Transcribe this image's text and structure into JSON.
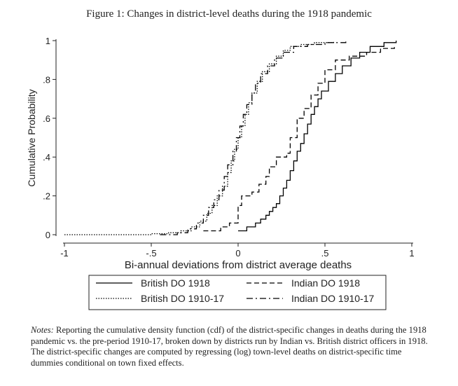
{
  "figure": {
    "title": "Figure 1: Changes in district-level deaths during the 1918 pandemic",
    "notes_label": "Notes:",
    "notes_text": "Reporting the cumulative density function (cdf) of the district-specific changes in deaths during the 1918 pandemic vs. the pre-period 1910-17, broken down by districts run by Indian vs. British district officers in 1918. The district-specific changes are computed by regressing (log) town-level deaths on district-specific time dummies conditional on town fixed effects."
  },
  "chart_data": {
    "type": "line",
    "step": true,
    "title": "",
    "xlabel": "Bi-annual deviations from district average deaths",
    "ylabel": "Cumulative Probability",
    "xlim": [
      -1,
      1
    ],
    "ylim": [
      0,
      1
    ],
    "x_ticks": [
      -1,
      -0.5,
      0,
      0.5,
      1
    ],
    "x_tick_labels": [
      "-1",
      "-.5",
      "0",
      ".5",
      "1"
    ],
    "y_ticks": [
      0,
      0.2,
      0.4,
      0.6,
      0.8,
      1
    ],
    "y_tick_labels": [
      "0",
      ".2",
      ".4",
      ".6",
      ".8",
      "1"
    ],
    "grid": false,
    "legend_position": "bottom",
    "series": [
      {
        "name": "British DO 1918",
        "line_style": "solid",
        "color": "#000000",
        "points": [
          [
            0.0,
            0.02
          ],
          [
            0.05,
            0.04
          ],
          [
            0.1,
            0.06
          ],
          [
            0.13,
            0.08
          ],
          [
            0.16,
            0.1
          ],
          [
            0.18,
            0.12
          ],
          [
            0.2,
            0.14
          ],
          [
            0.22,
            0.16
          ],
          [
            0.24,
            0.2
          ],
          [
            0.26,
            0.24
          ],
          [
            0.28,
            0.28
          ],
          [
            0.3,
            0.33
          ],
          [
            0.32,
            0.38
          ],
          [
            0.34,
            0.43
          ],
          [
            0.36,
            0.47
          ],
          [
            0.38,
            0.52
          ],
          [
            0.4,
            0.57
          ],
          [
            0.42,
            0.62
          ],
          [
            0.44,
            0.66
          ],
          [
            0.46,
            0.7
          ],
          [
            0.48,
            0.74
          ],
          [
            0.52,
            0.79
          ],
          [
            0.56,
            0.83
          ],
          [
            0.6,
            0.87
          ],
          [
            0.65,
            0.91
          ],
          [
            0.7,
            0.94
          ],
          [
            0.76,
            0.97
          ],
          [
            0.84,
            0.99
          ],
          [
            0.91,
            1.0
          ]
        ]
      },
      {
        "name": "Indian DO 1918",
        "line_style": "dashed",
        "color": "#000000",
        "points": [
          [
            -0.2,
            0.02
          ],
          [
            -0.1,
            0.04
          ],
          [
            -0.05,
            0.06
          ],
          [
            0.0,
            0.08
          ],
          [
            0.0,
            0.15
          ],
          [
            0.02,
            0.2
          ],
          [
            0.08,
            0.22
          ],
          [
            0.12,
            0.26
          ],
          [
            0.16,
            0.3
          ],
          [
            0.18,
            0.35
          ],
          [
            0.22,
            0.4
          ],
          [
            0.28,
            0.42
          ],
          [
            0.3,
            0.5
          ],
          [
            0.34,
            0.6
          ],
          [
            0.38,
            0.65
          ],
          [
            0.42,
            0.72
          ],
          [
            0.46,
            0.78
          ],
          [
            0.5,
            0.85
          ],
          [
            0.56,
            0.9
          ],
          [
            0.64,
            0.92
          ],
          [
            0.74,
            0.94
          ],
          [
            0.82,
            0.96
          ],
          [
            0.9,
            0.97
          ]
        ]
      },
      {
        "name": "British DO 1910-17",
        "line_style": "dotted",
        "color": "#000000",
        "points": [
          [
            -1.0,
            0.0
          ],
          [
            -0.5,
            0.005
          ],
          [
            -0.4,
            0.01
          ],
          [
            -0.33,
            0.02
          ],
          [
            -0.27,
            0.04
          ],
          [
            -0.22,
            0.07
          ],
          [
            -0.18,
            0.11
          ],
          [
            -0.15,
            0.15
          ],
          [
            -0.12,
            0.2
          ],
          [
            -0.09,
            0.25
          ],
          [
            -0.06,
            0.32
          ],
          [
            -0.04,
            0.38
          ],
          [
            -0.02,
            0.44
          ],
          [
            0.0,
            0.5
          ],
          [
            0.02,
            0.56
          ],
          [
            0.04,
            0.62
          ],
          [
            0.06,
            0.68
          ],
          [
            0.08,
            0.73
          ],
          [
            0.11,
            0.79
          ],
          [
            0.14,
            0.84
          ],
          [
            0.18,
            0.88
          ],
          [
            0.22,
            0.92
          ],
          [
            0.26,
            0.95
          ],
          [
            0.3,
            0.97
          ],
          [
            0.36,
            0.98
          ],
          [
            0.44,
            0.99
          ],
          [
            0.55,
            1.0
          ]
        ]
      },
      {
        "name": "Indian DO 1910-17",
        "line_style": "dash-dot",
        "color": "#000000",
        "points": [
          [
            -0.45,
            0.0
          ],
          [
            -0.35,
            0.01
          ],
          [
            -0.29,
            0.03
          ],
          [
            -0.24,
            0.06
          ],
          [
            -0.2,
            0.1
          ],
          [
            -0.17,
            0.14
          ],
          [
            -0.14,
            0.18
          ],
          [
            -0.11,
            0.23
          ],
          [
            -0.08,
            0.3
          ],
          [
            -0.06,
            0.36
          ],
          [
            -0.03,
            0.43
          ],
          [
            -0.01,
            0.5
          ],
          [
            0.01,
            0.56
          ],
          [
            0.03,
            0.62
          ],
          [
            0.05,
            0.67
          ],
          [
            0.08,
            0.73
          ],
          [
            0.1,
            0.78
          ],
          [
            0.13,
            0.83
          ],
          [
            0.17,
            0.87
          ],
          [
            0.21,
            0.91
          ],
          [
            0.26,
            0.94
          ],
          [
            0.32,
            0.97
          ],
          [
            0.4,
            0.98
          ],
          [
            0.5,
            0.99
          ],
          [
            0.62,
            1.0
          ]
        ]
      }
    ]
  }
}
